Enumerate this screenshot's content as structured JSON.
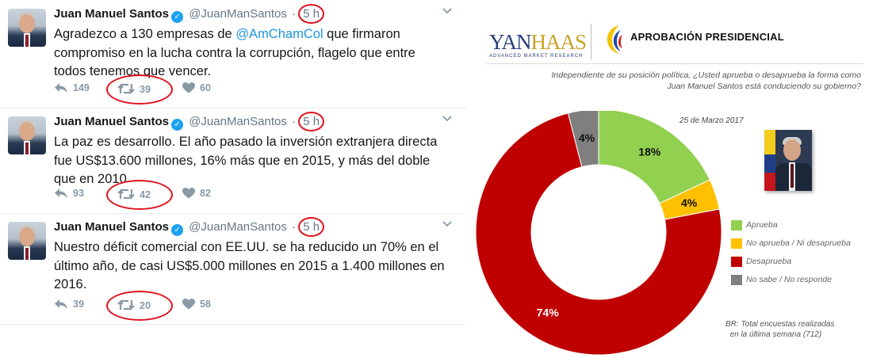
{
  "tweets": [
    {
      "name": "Juan Manuel Santos",
      "handle": "@JuanManSantos",
      "time": "5 h",
      "text_before": "Agradezco a 130 empresas de ",
      "mention": "@AmChamCol",
      "text_after": " que firmaron compromiso en la lucha contra la corrupción, flagelo que entre todos tenemos que vencer.",
      "replies": "149",
      "retweets": "39",
      "likes": "60"
    },
    {
      "name": "Juan Manuel Santos",
      "handle": "@JuanManSantos",
      "time": "5 h",
      "text": "La paz es desarrollo. El año pasado la inversión extranjera directa fue US$13.600 millones, 16% más que en 2015, y más del doble que en 2010",
      "replies": "93",
      "retweets": "42",
      "likes": "82"
    },
    {
      "name": "Juan Manuel Santos",
      "handle": "@JuanManSantos",
      "time": "5 h",
      "text": "Nuestro déficit comercial con EE.UU. se ha reducido un 70% en el último año, de casi US$5.000 millones en 2015 a 1.400 millones en 2016.",
      "replies": "39",
      "retweets": "20",
      "likes": "58"
    }
  ],
  "poll": {
    "logo_name_a": "YAN",
    "logo_name_b": "HAAS",
    "logo_sub": "ADVANCED MARKET RESEARCH",
    "title": "APROBACIÓN PRESIDENCIAL",
    "question_line1": "Independiente de su posición política, ¿Usted aprueba o desaprueba la forma como",
    "question_line2": "Juan Manuel Santos está conduciendo su gobierno?",
    "date": "25 de Marzo 2017",
    "note_line1": "BR: Total encuestas realizadas",
    "note_line2": "en la última semana",
    "note_count": "(712)"
  },
  "chart_data": {
    "type": "pie",
    "donut": true,
    "categories": [
      "Aprueba",
      "No aprueba / Ni desaprueba",
      "Desaprueba",
      "No sabe /  No responde"
    ],
    "values": [
      18,
      4,
      74,
      4
    ],
    "labels": [
      "18%",
      "4%",
      "74%",
      "4%"
    ],
    "colors": [
      "#92d050",
      "#ffc000",
      "#c00000",
      "#7f7f7f"
    ],
    "legend_position": "right"
  }
}
